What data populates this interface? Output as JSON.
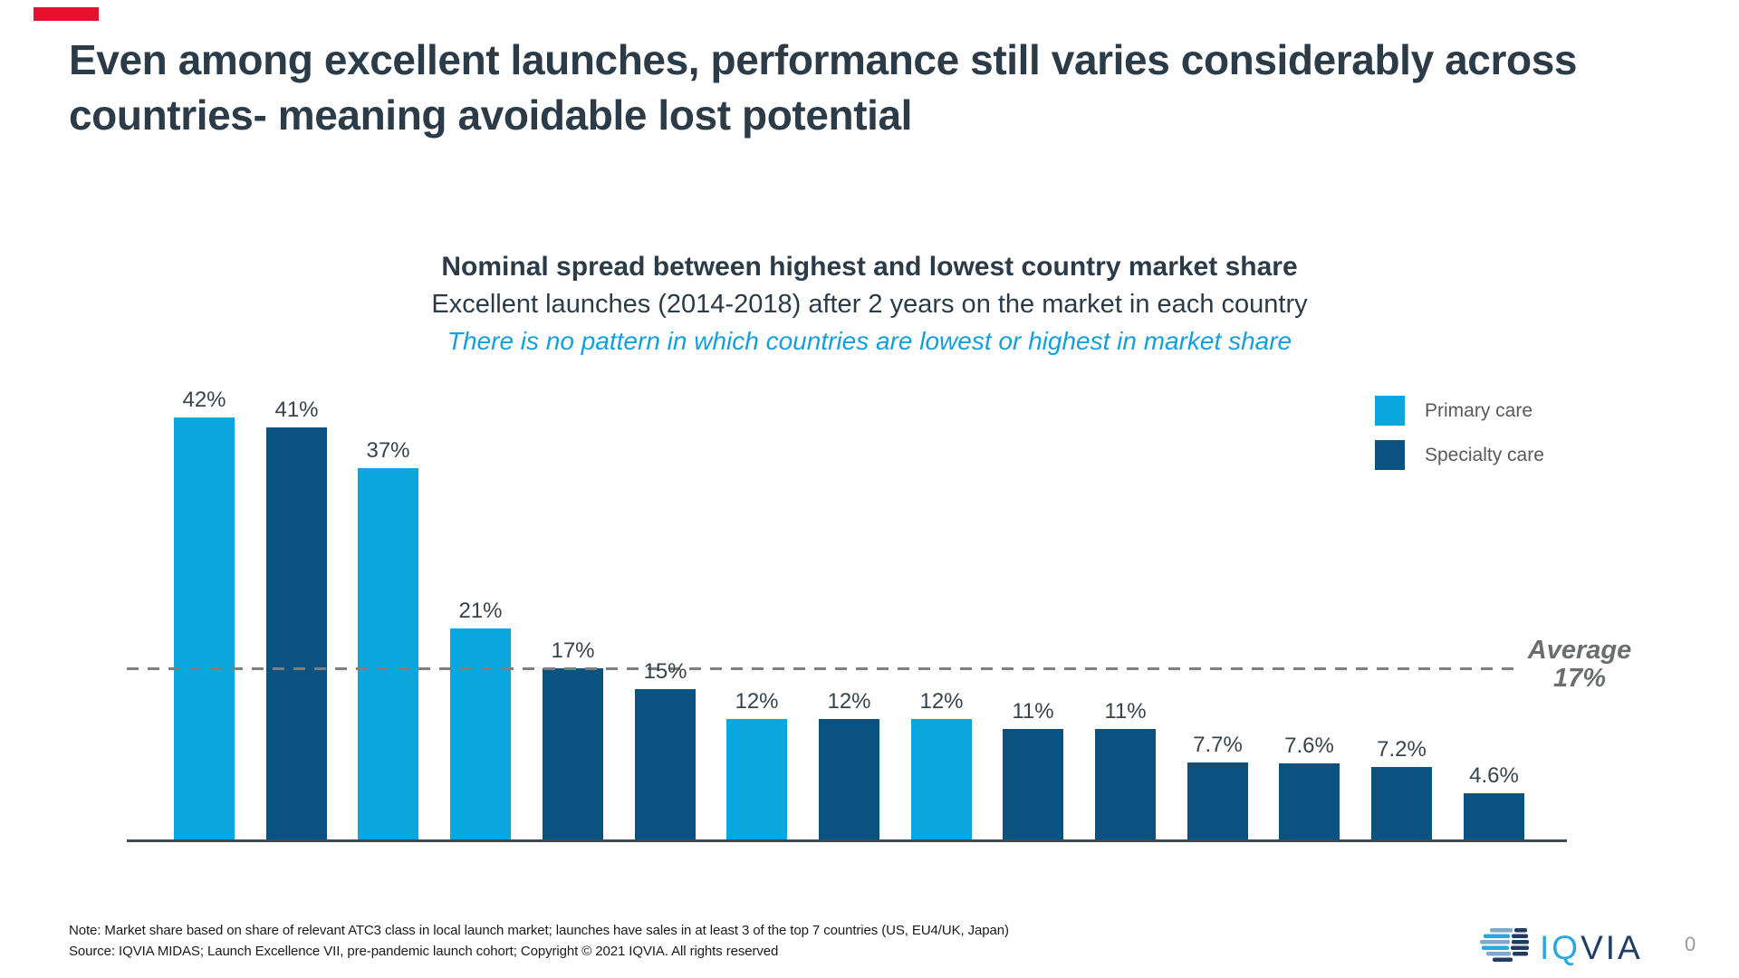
{
  "slide": {
    "title": "Even among excellent launches, performance still varies considerably across countries- meaning avoidable lost potential",
    "page_number": "0",
    "accent_color": "#E8112D"
  },
  "chart_data": {
    "type": "bar",
    "title": "Nominal spread between highest and lowest country market share",
    "subtitle": "Excellent launches (2014-2018) after 2 years on the market in each country",
    "annotation": "There is no pattern in which countries are lowest or highest in market share",
    "unit": "%",
    "ylim": [
      0,
      45
    ],
    "grid": false,
    "x_axis_labels": false,
    "legend_position": "top-right",
    "series_colors": {
      "Primary care": "#0AA6DE",
      "Specialty care": "#0A5280"
    },
    "legend": [
      {
        "name": "Primary care",
        "color": "#0AA6DE"
      },
      {
        "name": "Specialty care",
        "color": "#0A5280"
      }
    ],
    "bars": [
      {
        "value": 42,
        "label": "42%",
        "series": "Primary care"
      },
      {
        "value": 41,
        "label": "41%",
        "series": "Specialty care"
      },
      {
        "value": 37,
        "label": "37%",
        "series": "Primary care"
      },
      {
        "value": 21,
        "label": "21%",
        "series": "Primary care"
      },
      {
        "value": 17,
        "label": "17%",
        "series": "Specialty care"
      },
      {
        "value": 15,
        "label": "15%",
        "series": "Specialty care"
      },
      {
        "value": 12,
        "label": "12%",
        "series": "Primary care"
      },
      {
        "value": 12,
        "label": "12%",
        "series": "Specialty care"
      },
      {
        "value": 12,
        "label": "12%",
        "series": "Primary care"
      },
      {
        "value": 11,
        "label": "11%",
        "series": "Specialty care"
      },
      {
        "value": 11,
        "label": "11%",
        "series": "Specialty care"
      },
      {
        "value": 7.7,
        "label": "7.7%",
        "series": "Specialty care"
      },
      {
        "value": 7.6,
        "label": "7.6%",
        "series": "Specialty care"
      },
      {
        "value": 7.2,
        "label": "7.2%",
        "series": "Specialty care"
      },
      {
        "value": 4.6,
        "label": "4.6%",
        "series": "Specialty care"
      }
    ],
    "average_line": {
      "value": 17,
      "style": "dashed",
      "color": "#7F7F7F",
      "label_lines": [
        "Average",
        "17%"
      ]
    }
  },
  "footnote": {
    "line1": "Note: Market share based on share of relevant ATC3 class in local launch market; launches have sales in at least 3 of the top 7 countries (US, EU4/UK, Japan)",
    "line2": "Source: IQVIA MIDAS; Launch Excellence VII, pre-pandemic launch cohort; Copyright © 2021 IQVIA. All rights reserved"
  },
  "logo": {
    "text_primary": "IQ",
    "text_secondary": "VIA",
    "name": "IQVIA"
  }
}
